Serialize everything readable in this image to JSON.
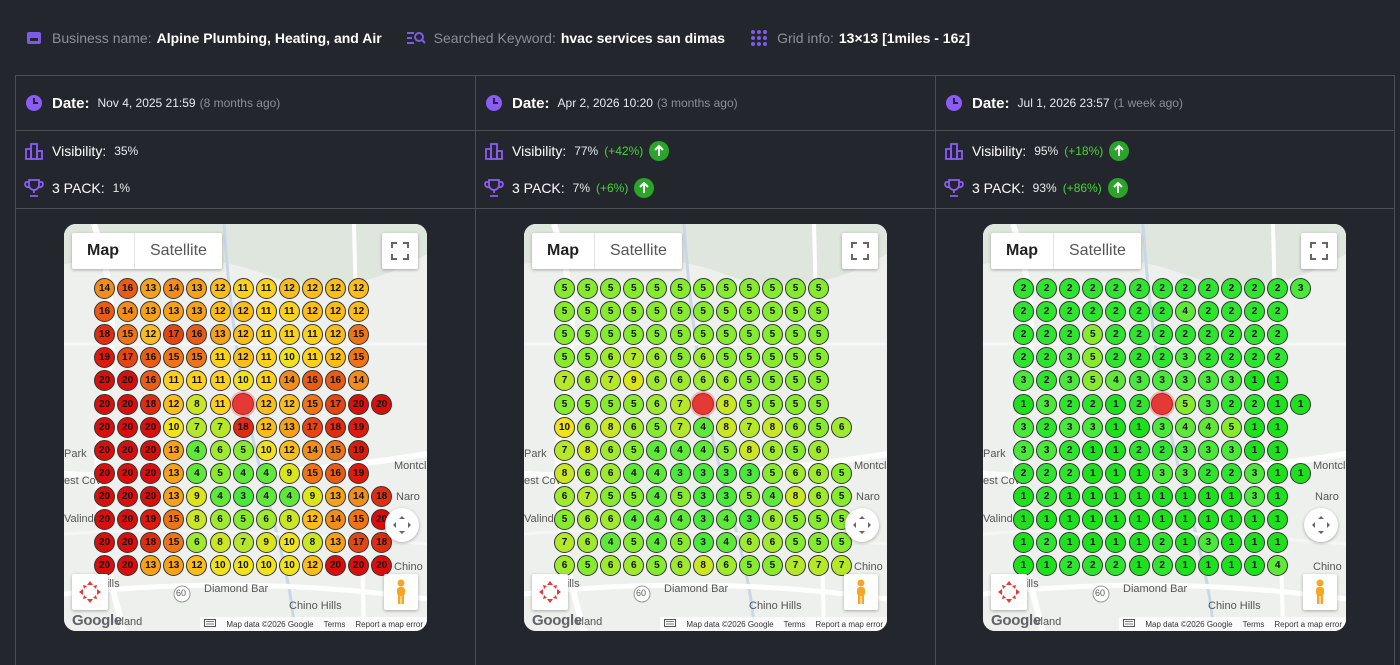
{
  "header": {
    "business_label": "Business name:",
    "business_value": "Alpine Plumbing, Heating, and Air",
    "keyword_label": "Searched Keyword:",
    "keyword_value": "hvac services san dimas",
    "grid_label": "Grid info:",
    "grid_value": "13×13 [1miles - 16z]"
  },
  "colors": {
    "accent": "#8b5cf6",
    "up": "#2aa52a",
    "delta": "#4cd137",
    "rank_1": "#1ee01e",
    "rank_2": "#2ee42e",
    "rank_3": "#49e83a",
    "rank_4": "#5fe83a",
    "rank_5": "#86ea2e",
    "rank_6": "#9fea2e",
    "rank_7": "#b6e82a",
    "rank_8": "#cbe624",
    "rank_9": "#dbe51c",
    "rank_10": "#f0e21c",
    "rank_11": "#fbd11b",
    "rank_12": "#fbbd1a",
    "rank_13": "#f5a11a",
    "rank_14": "#f28c1a",
    "rank_15": "#ee7418",
    "rank_16": "#ea5c15",
    "rank_17": "#e54512",
    "rank_18": "#e02c10",
    "rank_19": "#dc1a0e",
    "rank_20": "#d80f0c"
  },
  "labels": {
    "date": "Date:",
    "visibility": "Visibility:",
    "pack": "3 PACK:"
  },
  "map_ui": {
    "map": "Map",
    "satellite": "Satellite",
    "google": "Google",
    "attribution": "Map data ©2026 Google",
    "terms": "Terms",
    "report": "Report a map error",
    "places": {
      "park": "Park",
      "montcla": "Montcla",
      "est_covi": "est Covi",
      "naro": "Naro",
      "valinda": "Valinda",
      "chino": "Chino",
      "ose_hills": "ose Hills",
      "diamond_bar": "Diamond Bar",
      "chino_hills": "Chino Hills",
      "vland": "vland",
      "route_60": "60"
    }
  },
  "columns": [
    {
      "date": "Nov 4, 2025 21:59",
      "ago": "(8 months ago)",
      "visibility": "35%",
      "visibility_delta": "",
      "pack": "1%",
      "pack_delta": "",
      "grid": [
        [
          14,
          16,
          13,
          14,
          13,
          12,
          11,
          11,
          12,
          12,
          12,
          12
        ],
        [
          16,
          14,
          13,
          13,
          13,
          12,
          12,
          11,
          11,
          12,
          12,
          12
        ],
        [
          18,
          15,
          12,
          17,
          16,
          13,
          12,
          11,
          11,
          11,
          12,
          15
        ],
        [
          19,
          17,
          16,
          15,
          15,
          11,
          12,
          11,
          10,
          11,
          12,
          15
        ],
        [
          20,
          20,
          16,
          11,
          11,
          11,
          10,
          11,
          14,
          16,
          16,
          14
        ],
        [
          20,
          20,
          18,
          12,
          8,
          11,
          0,
          12,
          12,
          15,
          17,
          20,
          20
        ],
        [
          20,
          20,
          20,
          10,
          7,
          7,
          18,
          12,
          13,
          17,
          18,
          19
        ],
        [
          20,
          20,
          20,
          13,
          4,
          6,
          5,
          10,
          12,
          14,
          15,
          19
        ],
        [
          20,
          20,
          20,
          13,
          4,
          5,
          4,
          4,
          9,
          15,
          16,
          19
        ],
        [
          20,
          20,
          20,
          13,
          9,
          4,
          3,
          4,
          4,
          9,
          13,
          14,
          18
        ],
        [
          20,
          20,
          19,
          15,
          8,
          6,
          5,
          6,
          8,
          12,
          14,
          15,
          20
        ],
        [
          20,
          20,
          18,
          15,
          6,
          8,
          7,
          9,
          10,
          8,
          13,
          17,
          18
        ],
        [
          20,
          20,
          13,
          13,
          12,
          10,
          10,
          10,
          10,
          12,
          20,
          20,
          20
        ]
      ]
    },
    {
      "date": "Apr 2, 2026 10:20",
      "ago": "(3 months ago)",
      "visibility": "77%",
      "visibility_delta": "(+42%)",
      "pack": "7%",
      "pack_delta": "(+6%)",
      "grid": [
        [
          5,
          5,
          5,
          5,
          5,
          5,
          5,
          5,
          5,
          5,
          5,
          5
        ],
        [
          5,
          5,
          5,
          5,
          5,
          5,
          5,
          5,
          5,
          5,
          5,
          5
        ],
        [
          5,
          5,
          5,
          5,
          5,
          5,
          5,
          5,
          5,
          5,
          5,
          5
        ],
        [
          5,
          5,
          6,
          7,
          6,
          5,
          6,
          5,
          5,
          5,
          5,
          5
        ],
        [
          7,
          6,
          7,
          9,
          6,
          6,
          6,
          6,
          5,
          5,
          5,
          5
        ],
        [
          5,
          5,
          5,
          5,
          6,
          7,
          0,
          8,
          5,
          5,
          5,
          5
        ],
        [
          10,
          6,
          8,
          6,
          5,
          7,
          4,
          8,
          7,
          8,
          6,
          5,
          6
        ],
        [
          7,
          8,
          6,
          5,
          4,
          4,
          4,
          5,
          8,
          6,
          5,
          6
        ],
        [
          8,
          6,
          6,
          4,
          4,
          3,
          3,
          3,
          3,
          5,
          6,
          6,
          5
        ],
        [
          6,
          7,
          5,
          5,
          4,
          5,
          3,
          3,
          5,
          4,
          8,
          6,
          5
        ],
        [
          5,
          6,
          6,
          4,
          4,
          4,
          3,
          4,
          3,
          6,
          5,
          5,
          5
        ],
        [
          7,
          6,
          4,
          5,
          4,
          5,
          3,
          4,
          6,
          6,
          5,
          5,
          5
        ],
        [
          6,
          5,
          6,
          6,
          5,
          6,
          8,
          6,
          5,
          5,
          7,
          7,
          7
        ]
      ]
    },
    {
      "date": "Jul 1, 2026 23:57",
      "ago": "(1 week ago)",
      "visibility": "95%",
      "visibility_delta": "(+18%)",
      "pack": "93%",
      "pack_delta": "(+86%)",
      "grid": [
        [
          2,
          2,
          2,
          2,
          2,
          2,
          2,
          2,
          2,
          2,
          2,
          2,
          3
        ],
        [
          2,
          2,
          2,
          2,
          2,
          2,
          2,
          4,
          2,
          2,
          2,
          2
        ],
        [
          2,
          2,
          2,
          5,
          2,
          2,
          2,
          2,
          2,
          2,
          2,
          2
        ],
        [
          2,
          2,
          3,
          5,
          2,
          2,
          2,
          3,
          2,
          2,
          2,
          2
        ],
        [
          3,
          2,
          3,
          5,
          4,
          3,
          3,
          3,
          3,
          3,
          1,
          1
        ],
        [
          1,
          3,
          2,
          2,
          1,
          2,
          0,
          5,
          3,
          2,
          2,
          1,
          1
        ],
        [
          3,
          2,
          3,
          3,
          1,
          1,
          3,
          4,
          4,
          5,
          1,
          1
        ],
        [
          3,
          3,
          2,
          1,
          1,
          2,
          2,
          3,
          3,
          3,
          1,
          1
        ],
        [
          2,
          2,
          2,
          1,
          1,
          1,
          3,
          3,
          2,
          2,
          3,
          1,
          1
        ],
        [
          1,
          2,
          1,
          1,
          1,
          1,
          1,
          1,
          1,
          1,
          3,
          1
        ],
        [
          1,
          1,
          1,
          1,
          1,
          1,
          1,
          1,
          1,
          1,
          1,
          1
        ],
        [
          1,
          2,
          1,
          1,
          1,
          1,
          2,
          1,
          3,
          1,
          1,
          1
        ],
        [
          1,
          1,
          2,
          2,
          2,
          1,
          2,
          1,
          1,
          1,
          1,
          4
        ]
      ]
    }
  ]
}
